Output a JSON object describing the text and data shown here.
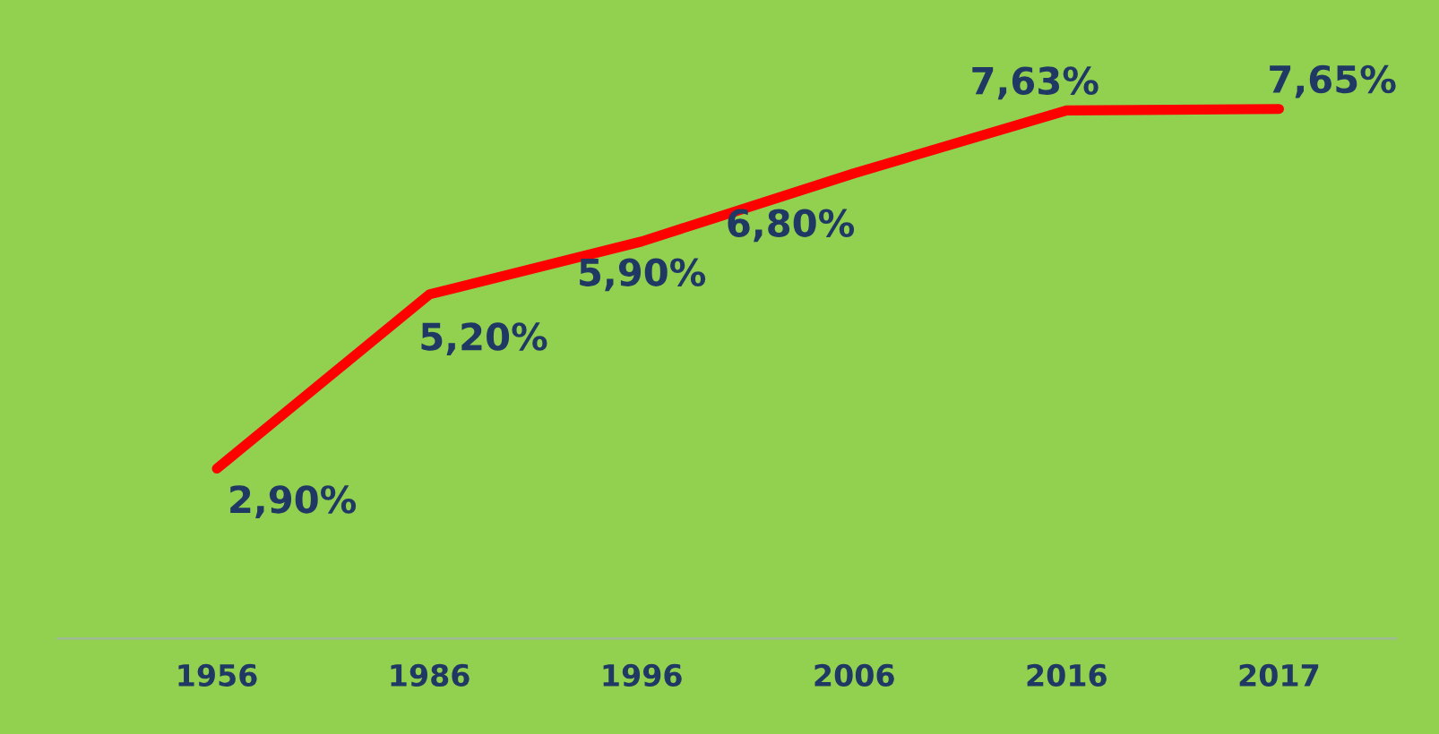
{
  "chart_data": {
    "type": "line",
    "categories": [
      "1956",
      "1986",
      "1996",
      "2006",
      "2016",
      "2017"
    ],
    "series": [
      {
        "color": "#ff0000",
        "values": [
          2.9,
          5.2,
          5.9,
          6.8,
          7.63,
          7.65
        ],
        "value_labels": [
          "2,90%",
          "5,20%",
          "5,90%",
          "6,80%",
          "7,63%",
          "7,65%"
        ]
      }
    ],
    "grid": false,
    "legend": false,
    "marker": "none",
    "line_style": "solid",
    "tick_labels": "x"
  }
}
